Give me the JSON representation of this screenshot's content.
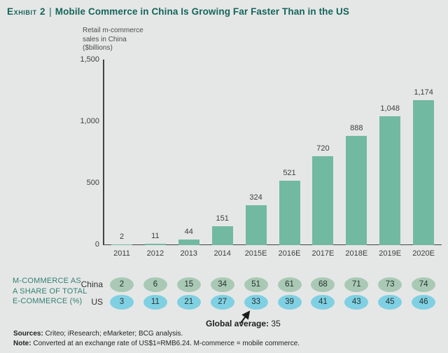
{
  "title": {
    "exhibit": "Exhibit 2",
    "separator": "|",
    "text": "Mobile Commerce in China Is Growing Far Faster Than in the US"
  },
  "colors": {
    "background": "#E5E7E6",
    "title_green": "#15655C",
    "label_green": "#338073",
    "bar": "#72B9A2",
    "china_badge": "#A9C9B5",
    "us_badge": "#7FD0E2",
    "axis": "#3F4444"
  },
  "chart_data": {
    "type": "bar",
    "title": "Mobile Commerce in China Is Growing Far Faster Than in the US",
    "axis_header": "Retail m-commerce\nsales in China\n($billions)",
    "categories": [
      "2011",
      "2012",
      "2013",
      "2014",
      "2015E",
      "2016E",
      "2017E",
      "2018E",
      "2019E",
      "2020E"
    ],
    "values": [
      2,
      11,
      44,
      151,
      324,
      521,
      720,
      888,
      1048,
      1174
    ],
    "value_labels": [
      "2",
      "11",
      "44",
      "151",
      "324",
      "521",
      "720",
      "888",
      "1,048",
      "1,174"
    ],
    "ylim": [
      0,
      1500
    ],
    "yticks": [
      {
        "label": "1,500",
        "value": 1500
      },
      {
        "label": "1,000",
        "value": 1000
      },
      {
        "label": "500",
        "value": 500
      },
      {
        "label": "0",
        "value": 0
      }
    ],
    "grid": false,
    "legend": "none",
    "share_table": {
      "label": "M-COMMERCE AS\nA SHARE OF TOTAL\nE-COMMERCE (%)",
      "rows": [
        {
          "name": "China",
          "values": [
            2,
            6,
            15,
            34,
            51,
            61,
            68,
            71,
            73,
            74
          ]
        },
        {
          "name": "US",
          "values": [
            3,
            11,
            21,
            27,
            33,
            39,
            41,
            43,
            45,
            46
          ]
        }
      ],
      "annotation": {
        "label": "Global average:",
        "value": "35"
      }
    }
  },
  "footer": {
    "sources_label": "Sources:",
    "sources_text": "Criteo; iResearch; eMarketer; BCG analysis.",
    "note_label": "Note:",
    "note_text": "Converted at an exchange rate of US$1=RMB6.24. M-commerce = mobile commerce."
  }
}
